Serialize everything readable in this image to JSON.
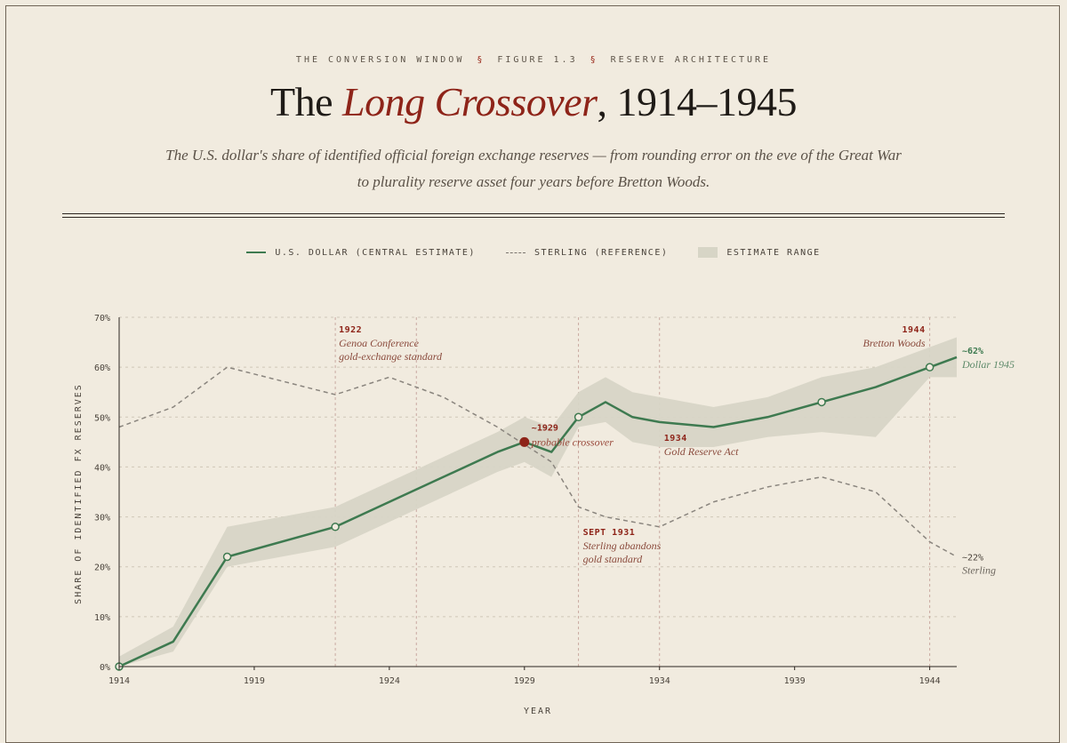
{
  "header": {
    "kicker_left": "THE CONVERSION WINDOW",
    "kicker_sep": "§",
    "kicker_mid": "FIGURE 1.3",
    "kicker_right": "RESERVE ARCHITECTURE",
    "title_pre": "The ",
    "title_em": "Long Crossover",
    "title_post": ", 1914–1945",
    "subtitle": "The U.S. dollar's share of identified official foreign exchange reserves — from rounding error on the eve of the Great War to plurality reserve asset four years before Bretton Woods."
  },
  "legend": {
    "dollar": "U.S. DOLLAR (CENTRAL ESTIMATE)",
    "sterling": "STERLING (REFERENCE)",
    "range": "ESTIMATE RANGE"
  },
  "colors": {
    "dollar": "#3e7a50",
    "sterling": "#8a857e",
    "band": "#d7d5c6",
    "event": "#8e2419"
  },
  "chart_data": {
    "type": "line",
    "xlabel": "YEAR",
    "ylabel": "SHARE OF IDENTIFIED FX RESERVES",
    "xlim": [
      1914,
      1945
    ],
    "ylim": [
      0,
      70
    ],
    "xticks": [
      1914,
      1919,
      1924,
      1929,
      1934,
      1939,
      1944
    ],
    "yticks": [
      0,
      10,
      20,
      30,
      40,
      50,
      60,
      70
    ],
    "ytick_labels": [
      "0%",
      "10%",
      "20%",
      "30%",
      "40%",
      "50%",
      "60%",
      "70%"
    ],
    "series": [
      {
        "name": "U.S. Dollar (central estimate)",
        "x": [
          1914,
          1916,
          1918,
          1922,
          1926,
          1928,
          1929,
          1930,
          1931,
          1932,
          1933,
          1934,
          1936,
          1938,
          1940,
          1942,
          1944,
          1945
        ],
        "y": [
          0,
          5,
          22,
          28,
          38,
          43,
          45,
          43,
          50,
          53,
          50,
          49,
          48,
          50,
          53,
          56,
          60,
          62
        ],
        "markers": [
          1914,
          1918,
          1922,
          1931,
          1940,
          1944
        ],
        "end_label": "~62%",
        "end_sublabel": "Dollar 1945"
      },
      {
        "name": "Sterling (reference)",
        "x": [
          1914,
          1916,
          1918,
          1922,
          1924,
          1926,
          1928,
          1930,
          1931,
          1932,
          1934,
          1936,
          1938,
          1940,
          1942,
          1944,
          1945
        ],
        "y": [
          48,
          52,
          60,
          54.5,
          58,
          54,
          48,
          41,
          32,
          30,
          28,
          33,
          36,
          38,
          35,
          25,
          22
        ],
        "end_label": "~22%",
        "end_sublabel": "Sterling"
      }
    ],
    "band": {
      "x": [
        1914,
        1916,
        1918,
        1922,
        1926,
        1928,
        1929,
        1930,
        1931,
        1932,
        1933,
        1934,
        1936,
        1938,
        1940,
        1942,
        1943,
        1944,
        1945
      ],
      "low": [
        0,
        3,
        20,
        24,
        34,
        39,
        41,
        38,
        48,
        49,
        45,
        44,
        44,
        46,
        47,
        46,
        52,
        58,
        58
      ],
      "high": [
        2,
        8,
        28,
        32,
        42,
        47,
        50,
        48,
        55,
        58,
        55,
        54,
        52,
        54,
        58,
        60,
        62,
        64,
        66
      ]
    },
    "events": [
      {
        "x": 1922,
        "label": "1922",
        "text1": "Genoa Conference",
        "text2": "gold-exchange standard"
      },
      {
        "x": 1925,
        "label": "",
        "text1": "",
        "text2": ""
      },
      {
        "x": 1931,
        "label": "SEPT 1931",
        "text1": "Sterling abandons",
        "text2": "gold standard"
      },
      {
        "x": 1934,
        "label": "1934",
        "text1": "Gold Reserve Act",
        "text2": ""
      },
      {
        "x": 1944,
        "label": "1944",
        "text1": "Bretton Woods",
        "text2": ""
      }
    ],
    "crossover": {
      "x": 1929,
      "y": 45,
      "label": "~1929",
      "text": "probable crossover"
    }
  }
}
